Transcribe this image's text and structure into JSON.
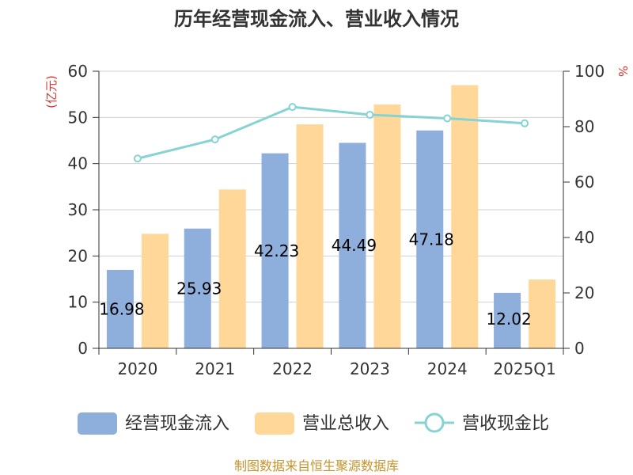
{
  "chart_data": {
    "type": "bar",
    "title": "历年经营现金流入、营业收入情况",
    "categories": [
      "2020",
      "2021",
      "2022",
      "2023",
      "2024",
      "2025Q1"
    ],
    "series": [
      {
        "name": "经营现金流入",
        "kind": "bar",
        "axis": "left",
        "color": "#8eaedb",
        "values": [
          16.98,
          25.93,
          42.23,
          44.49,
          47.18,
          12.02
        ]
      },
      {
        "name": "营业总收入",
        "kind": "bar",
        "axis": "left",
        "color": "#ffd899",
        "values": [
          24.8,
          34.4,
          48.5,
          52.8,
          57.0,
          14.9
        ]
      },
      {
        "name": "营收现金比",
        "kind": "line",
        "axis": "right",
        "color": "#86d3d3",
        "values": [
          68.5,
          75.4,
          87.1,
          84.3,
          83.0,
          81.2
        ]
      }
    ],
    "data_labels": [
      "16.98",
      "25.93",
      "42.23",
      "44.49",
      "47.18",
      "12.02"
    ],
    "y_left": {
      "label": "(亿元)",
      "min": 0,
      "max": 60,
      "ticks": [
        0,
        10,
        20,
        30,
        40,
        50,
        60
      ]
    },
    "y_right": {
      "label": "%",
      "min": 0,
      "max": 100,
      "ticks": [
        0,
        20,
        40,
        60,
        80,
        100
      ]
    },
    "grid": true,
    "legend_position": "bottom"
  },
  "source": "制图数据来自恒生聚源数据库"
}
